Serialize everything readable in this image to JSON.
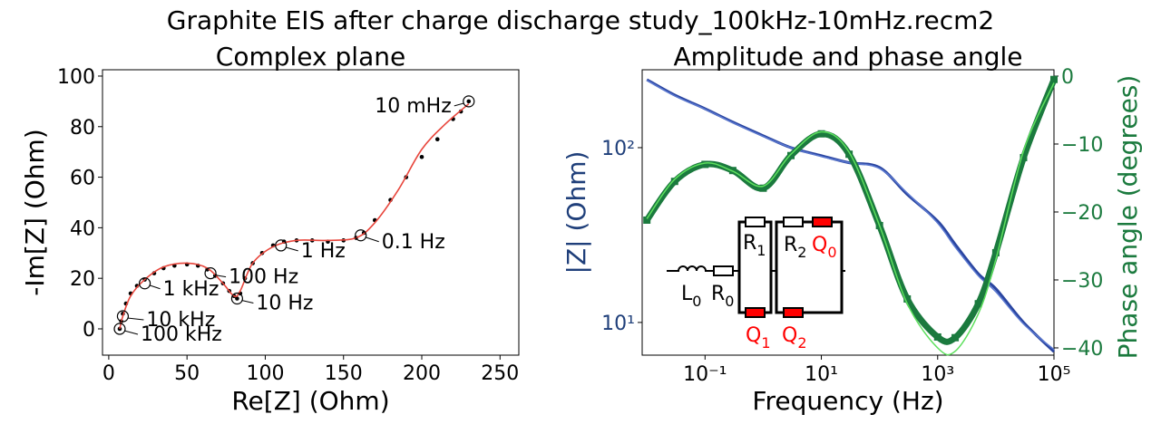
{
  "title": "Graphite EIS after charge discharge study_100kHz-10mHz.recm2",
  "chart_data": [
    {
      "type": "scatter",
      "title": "Complex plane",
      "xlabel": "Re[Z] (Ohm)",
      "ylabel": "-Im[Z] (Ohm)",
      "xlim": [
        -4,
        262
      ],
      "ylim": [
        -10.4,
        102.5
      ],
      "xticks": [
        0,
        50,
        100,
        150,
        200,
        250
      ],
      "yticks": [
        0,
        20,
        40,
        60,
        80,
        100
      ],
      "series": [
        {
          "color": "#000000",
          "style": "dots",
          "x": [
            7,
            8,
            9,
            11,
            14,
            18,
            23,
            29,
            35,
            42,
            50,
            57,
            63,
            68,
            73,
            77,
            80,
            82,
            84,
            87,
            92,
            98,
            105,
            112,
            120,
            130,
            140,
            150,
            158,
            163,
            170,
            180,
            190,
            200,
            210,
            220,
            225,
            230
          ],
          "values": [
            0,
            3,
            6,
            10,
            14,
            17,
            19.5,
            22,
            24,
            25,
            25.5,
            25,
            23.5,
            21,
            18,
            15,
            13,
            12,
            14,
            20,
            26,
            30,
            33,
            34.5,
            35,
            35,
            34.5,
            35,
            36,
            38,
            43,
            51,
            60,
            68,
            75,
            83,
            86,
            90
          ]
        },
        {
          "color": "#e8463c",
          "style": "line",
          "x": [
            7,
            9,
            14,
            23,
            35,
            50,
            63,
            73,
            80,
            84,
            92,
            105,
            120,
            140,
            158,
            170,
            185,
            200,
            215,
            230
          ],
          "values": [
            0,
            5,
            13,
            19.5,
            24.5,
            26,
            24,
            18,
            13,
            15,
            26,
            32.5,
            35,
            35,
            36,
            42,
            55,
            71,
            81,
            89
          ]
        }
      ],
      "annotations": [
        {
          "text": "100 kHz",
          "x": 7,
          "y": 0
        },
        {
          "text": "10 kHz",
          "x": 9,
          "y": 5
        },
        {
          "text": "1 kHz",
          "x": 23,
          "y": 18
        },
        {
          "text": "100 Hz",
          "x": 65,
          "y": 22
        },
        {
          "text": "10 Hz",
          "x": 82,
          "y": 12
        },
        {
          "text": "1 Hz",
          "x": 110,
          "y": 33
        },
        {
          "text": "0.1 Hz",
          "x": 161,
          "y": 37
        },
        {
          "text": "10 mHz",
          "x": 230,
          "y": 90
        }
      ]
    },
    {
      "type": "line",
      "title": "Amplitude and phase angle",
      "xlabel": "Frequency (Hz)",
      "ylabel": "|Z| (Ohm)",
      "y2label": "Phase angle (degrees)",
      "xscale": "log",
      "yscale": "log",
      "ylabel_color": "#1f3f7a",
      "y2label_color": "#1b7a3e",
      "xlim": [
        0.0083,
        100000
      ],
      "ylim": [
        6.5,
        279
      ],
      "y2lim": [
        -41.07,
        0.93
      ],
      "xticks": [
        {
          "value": 0.1,
          "label": "10⁻¹"
        },
        {
          "value": 10,
          "label": "10¹"
        },
        {
          "value": 1000,
          "label": "10³"
        },
        {
          "value": 100000,
          "label": "10⁵"
        }
      ],
      "yticks": [
        {
          "value": 10,
          "label": "10¹"
        },
        {
          "value": 100,
          "label": "10²"
        }
      ],
      "y2ticks": [
        0,
        {
          "value": -10,
          "label": "−10"
        },
        {
          "value": -20,
          "label": "−20"
        },
        {
          "value": -30,
          "label": "−30"
        },
        {
          "value": -40,
          "label": "−40"
        }
      ],
      "x": [
        0.01,
        0.03,
        0.1,
        0.3,
        1,
        3,
        10,
        30,
        100,
        300,
        1000,
        2000,
        5000,
        10000,
        30000,
        100000
      ],
      "series": [
        {
          "color": "#2a45a0",
          "style": "line",
          "values": [
            245,
            200,
            167,
            140,
            117,
            100,
            90,
            82,
            77,
            54,
            38,
            28,
            19,
            15.6,
            10,
            6.8
          ]
        },
        {
          "color": "#5a78d0",
          "style": "thin",
          "values": [
            243,
            198,
            166,
            139,
            116,
            100,
            89,
            82,
            76,
            55,
            37,
            27,
            18.5,
            15,
            9.8,
            7
          ]
        },
        {
          "color": "#1b7a3e",
          "style": "squares",
          "axis": "y2",
          "values": [
            -21.2,
            -15.5,
            -13,
            -13.9,
            -16.5,
            -11.7,
            -8.5,
            -11.5,
            -22,
            -32.8,
            -38.4,
            -38.5,
            -33.5,
            -26,
            -12,
            -0.5
          ]
        },
        {
          "color": "#5ee05e",
          "style": "thin",
          "axis": "y2",
          "values": [
            -21,
            -15.2,
            -12.8,
            -14,
            -16.2,
            -11.5,
            -8.2,
            -11.2,
            -22,
            -33.5,
            -40,
            -40.5,
            -35,
            -27,
            -11,
            -1
          ]
        }
      ],
      "circuit": {
        "color": "#ff0000",
        "elements": [
          {
            "base": "L",
            "sub": "0"
          },
          {
            "base": "R",
            "sub": "0"
          },
          {
            "base": "R",
            "sub": "1"
          },
          {
            "base": "Q",
            "sub": "1"
          },
          {
            "base": "R",
            "sub": "2"
          },
          {
            "base": "Q",
            "sub": "0"
          },
          {
            "base": "Q",
            "sub": "2"
          }
        ]
      }
    }
  ]
}
